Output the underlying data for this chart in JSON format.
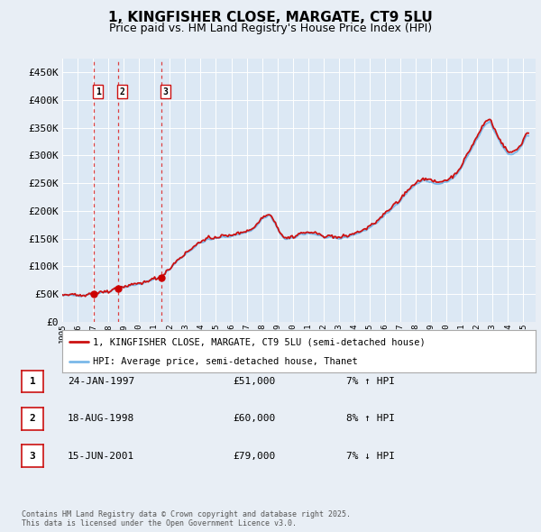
{
  "title": "1, KINGFISHER CLOSE, MARGATE, CT9 5LU",
  "subtitle": "Price paid vs. HM Land Registry's House Price Index (HPI)",
  "background_color": "#e8eef5",
  "plot_bg_color": "#dce8f4",
  "grid_color": "#ffffff",
  "ytick_labels": [
    "£0",
    "£50K",
    "£100K",
    "£150K",
    "£200K",
    "£250K",
    "£300K",
    "£350K",
    "£400K",
    "£450K"
  ],
  "ytick_values": [
    0,
    50000,
    100000,
    150000,
    200000,
    250000,
    300000,
    350000,
    400000,
    450000
  ],
  "ylim": [
    0,
    475000
  ],
  "xlim_start": 1995.0,
  "xlim_end": 2025.8,
  "sale_dates": [
    1997.07,
    1998.63,
    2001.46
  ],
  "sale_prices": [
    51000,
    60000,
    79000
  ],
  "sale_labels": [
    "1",
    "2",
    "3"
  ],
  "vline_color": "#dd2222",
  "sale_marker_color": "#cc0000",
  "hpi_line_color": "#7ab8e8",
  "price_line_color": "#cc1111",
  "legend_label_price": "1, KINGFISHER CLOSE, MARGATE, CT9 5LU (semi-detached house)",
  "legend_label_hpi": "HPI: Average price, semi-detached house, Thanet",
  "table_rows": [
    {
      "num": "1",
      "date": "24-JAN-1997",
      "price": "£51,000",
      "hpi": "7% ↑ HPI"
    },
    {
      "num": "2",
      "date": "18-AUG-1998",
      "price": "£60,000",
      "hpi": "8% ↑ HPI"
    },
    {
      "num": "3",
      "date": "15-JUN-2001",
      "price": "£79,000",
      "hpi": "7% ↓ HPI"
    }
  ],
  "footer_text": "Contains HM Land Registry data © Crown copyright and database right 2025.\nThis data is licensed under the Open Government Licence v3.0.",
  "xtick_years": [
    "1995",
    "1996",
    "1997",
    "1998",
    "1999",
    "2000",
    "2001",
    "2002",
    "2003",
    "2004",
    "2005",
    "2006",
    "2007",
    "2008",
    "2009",
    "2010",
    "2011",
    "2012",
    "2013",
    "2014",
    "2015",
    "2016",
    "2017",
    "2018",
    "2019",
    "2020",
    "2021",
    "2022",
    "2023",
    "2024",
    "2025"
  ]
}
